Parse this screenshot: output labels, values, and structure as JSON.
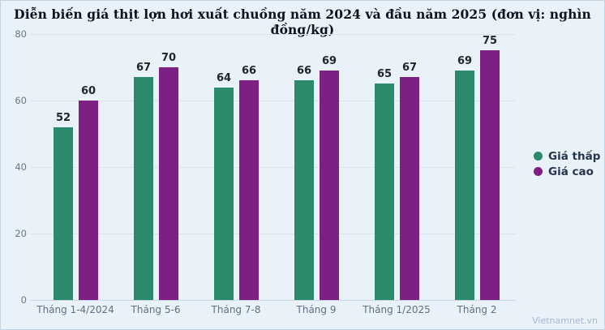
{
  "watermark": "Vietnamnet.vn",
  "chart_data": {
    "type": "bar",
    "title": "Diễn biến giá thịt lợn hơi xuất chuồng năm 2024 và đầu năm 2025 (đơn vị: nghìn đồng/kg)",
    "categories": [
      "Tháng 1-4/2024",
      "Tháng 5-6",
      "Tháng 7-8",
      "Tháng 9",
      "Tháng 1/2025",
      "Tháng 2"
    ],
    "series": [
      {
        "name": "Giá thấp",
        "color": "#2b8a6b",
        "values": [
          52,
          67,
          64,
          66,
          65,
          69
        ]
      },
      {
        "name": "Giá cao",
        "color": "#7e2083",
        "values": [
          60,
          70,
          66,
          69,
          67,
          75
        ]
      }
    ],
    "ylim": [
      0,
      80
    ],
    "yticks": [
      0,
      20,
      40,
      60,
      80
    ],
    "xlabel": "",
    "ylabel": "",
    "unit": "nghìn đồng/kg",
    "grid": true,
    "legend_position": "right",
    "background_color": "#e9f1f9"
  }
}
